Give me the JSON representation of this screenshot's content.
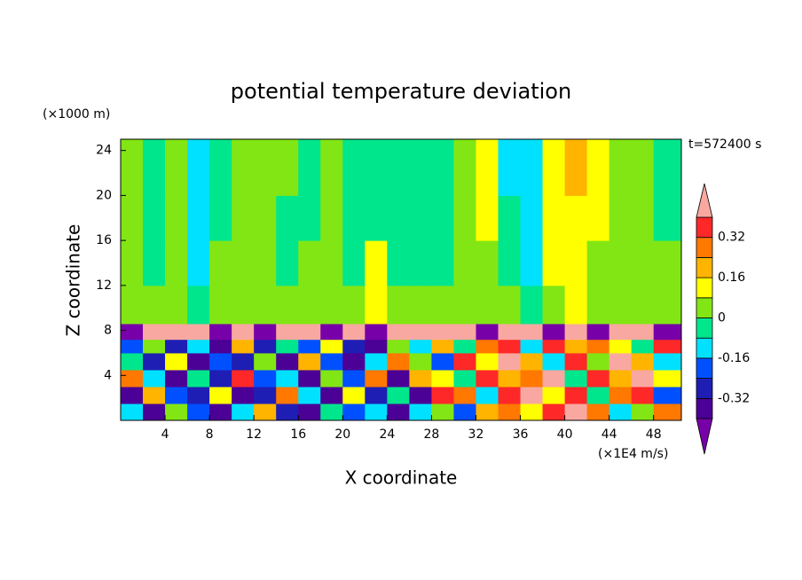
{
  "chart_data": {
    "type": "contour",
    "title": "potential temperature deviation",
    "xlabel": "X coordinate",
    "ylabel": "Z coordinate",
    "x_unit": "(×1E4 m/s)",
    "y_unit": "(×1000 m)",
    "annotation": "t=572400 s",
    "xlim": [
      0,
      50.5
    ],
    "ylim": [
      0,
      25
    ],
    "xticks": [
      4,
      8,
      12,
      16,
      20,
      24,
      28,
      32,
      36,
      40,
      44,
      48
    ],
    "yticks": [
      4,
      8,
      12,
      16,
      20,
      24
    ],
    "x_edges": [
      0,
      2,
      4,
      6,
      8,
      10,
      12,
      14,
      16,
      18,
      20,
      22,
      24,
      26,
      28,
      30,
      32,
      34,
      36,
      38,
      40,
      42,
      44,
      46,
      48,
      50.5
    ],
    "y_edges": [
      0,
      1.5,
      3,
      4.5,
      6,
      7.2,
      8.6,
      12,
      16,
      20,
      25
    ],
    "z": [
      [
        -0.12,
        -0.36,
        0.04,
        -0.2,
        -0.36,
        -0.12,
        0.2,
        -0.28,
        -0.36,
        -0.04,
        -0.2,
        -0.12,
        -0.36,
        -0.12,
        0.04,
        -0.2,
        0.2,
        0.28,
        0.12,
        0.36,
        0.45,
        0.28,
        -0.12,
        0.04,
        0.28
      ],
      [
        -0.36,
        0.2,
        -0.2,
        -0.28,
        0.12,
        -0.36,
        -0.28,
        0.28,
        -0.12,
        -0.36,
        0.12,
        -0.28,
        -0.04,
        -0.36,
        0.36,
        0.28,
        -0.12,
        0.36,
        0.45,
        0.12,
        0.36,
        -0.04,
        0.28,
        0.36,
        -0.2
      ],
      [
        0.28,
        -0.12,
        -0.36,
        -0.04,
        -0.28,
        0.36,
        -0.2,
        -0.12,
        -0.36,
        0.04,
        -0.2,
        0.28,
        -0.36,
        0.2,
        0.12,
        -0.04,
        0.36,
        0.2,
        0.28,
        0.45,
        -0.04,
        0.36,
        0.2,
        0.45,
        0.12
      ],
      [
        -0.04,
        -0.28,
        0.12,
        -0.36,
        -0.2,
        -0.28,
        0.04,
        -0.36,
        0.2,
        -0.2,
        -0.36,
        -0.12,
        0.28,
        0.04,
        -0.2,
        0.36,
        0.12,
        0.45,
        0.2,
        -0.12,
        0.36,
        0.04,
        0.45,
        0.2,
        -0.12
      ],
      [
        -0.2,
        0.04,
        -0.28,
        -0.12,
        -0.36,
        0.2,
        -0.28,
        -0.04,
        -0.2,
        0.12,
        -0.28,
        -0.36,
        0.04,
        -0.12,
        0.2,
        -0.04,
        0.28,
        0.36,
        -0.12,
        0.36,
        0.2,
        0.28,
        0.12,
        -0.04,
        0.36
      ],
      [
        -0.45,
        0.45,
        0.45,
        0.45,
        -0.45,
        0.45,
        -0.45,
        0.45,
        0.45,
        -0.45,
        0.45,
        -0.45,
        0.45,
        0.45,
        0.45,
        0.45,
        -0.45,
        0.45,
        0.45,
        -0.45,
        0.45,
        -0.45,
        0.45,
        0.45,
        -0.45
      ],
      [
        0.04,
        0.04,
        0.04,
        -0.04,
        0.04,
        0.04,
        0.04,
        0.04,
        0.04,
        0.04,
        0.04,
        0.12,
        0.04,
        0.04,
        0.04,
        0.04,
        0.04,
        0.04,
        -0.04,
        0.04,
        0.12,
        0.04,
        0.04,
        0.04,
        0.04
      ],
      [
        0.04,
        -0.04,
        0.04,
        -0.12,
        0.04,
        0.04,
        0.04,
        -0.04,
        0.04,
        0.04,
        -0.04,
        0.12,
        -0.04,
        -0.04,
        -0.04,
        0.04,
        0.04,
        -0.04,
        -0.12,
        0.12,
        0.12,
        0.04,
        0.04,
        0.04,
        0.04
      ],
      [
        0.04,
        -0.04,
        0.04,
        -0.12,
        -0.04,
        0.04,
        0.04,
        -0.04,
        -0.04,
        0.04,
        -0.04,
        -0.04,
        -0.04,
        -0.04,
        -0.04,
        0.04,
        0.12,
        -0.04,
        -0.12,
        0.12,
        0.12,
        0.12,
        0.04,
        0.04,
        -0.04
      ],
      [
        0.04,
        -0.04,
        0.04,
        -0.12,
        -0.04,
        0.04,
        0.04,
        0.04,
        -0.04,
        0.04,
        -0.04,
        -0.04,
        -0.04,
        -0.04,
        -0.04,
        0.04,
        0.12,
        -0.12,
        -0.12,
        0.12,
        0.2,
        0.12,
        0.04,
        0.04,
        -0.04
      ]
    ],
    "levels": [
      -0.4,
      -0.32,
      -0.24,
      -0.16,
      -0.08,
      0,
      0.08,
      0.16,
      0.24,
      0.32,
      0.4
    ],
    "colors": [
      "#7800a8",
      "#4b0096",
      "#1e1eb4",
      "#0050ff",
      "#00e1ff",
      "#00e68c",
      "#82e614",
      "#ffff00",
      "#ffb400",
      "#ff7800",
      "#ff2828",
      "#f8a8a0"
    ],
    "cbar_ticks": [
      0.32,
      0.16,
      0,
      -0.16,
      -0.32
    ]
  }
}
